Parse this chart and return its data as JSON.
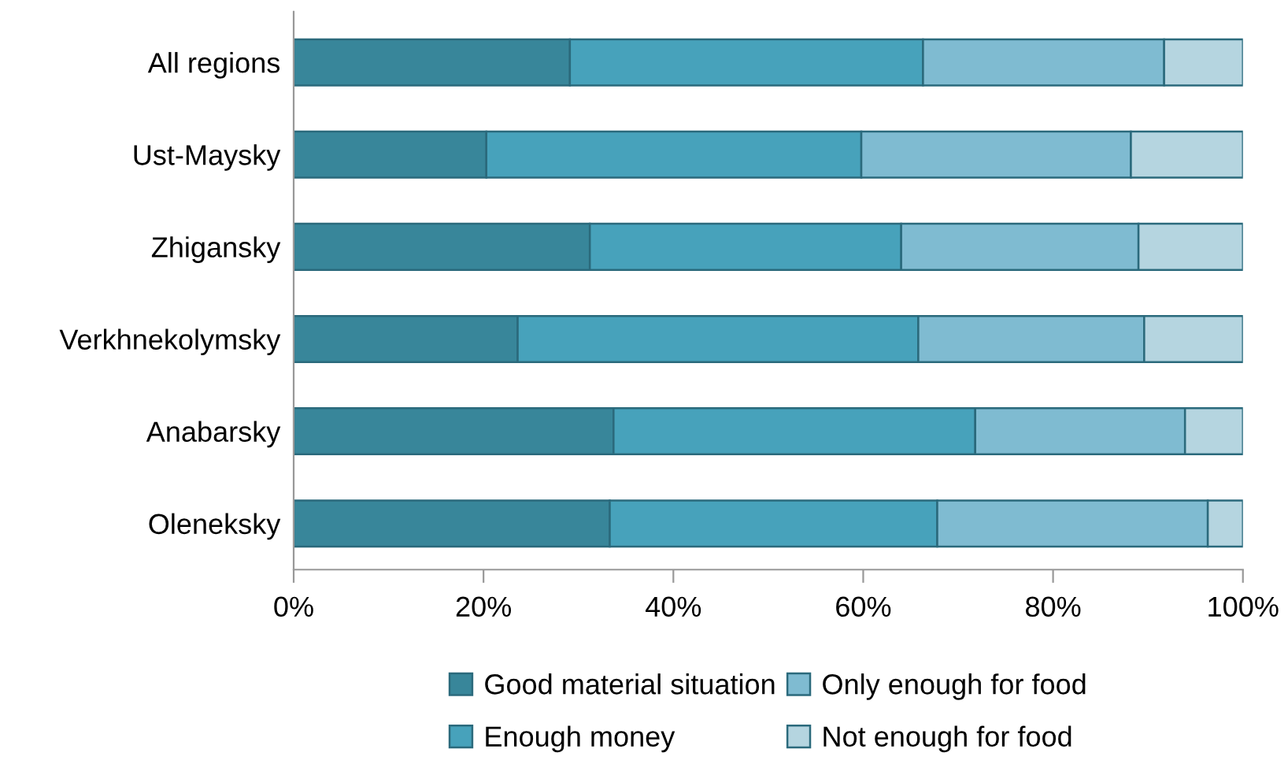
{
  "chart_data": {
    "type": "bar",
    "orientation": "horizontal",
    "stacked": true,
    "categories": [
      "All regions",
      "Ust-Maysky",
      "Zhigansky",
      "Verkhnekolymsky",
      "Anabarsky",
      "Oleneksky"
    ],
    "series": [
      {
        "name": "Good material situation",
        "color": "#38869a",
        "values": [
          29.1,
          20.3,
          31.2,
          23.6,
          33.7,
          33.3
        ]
      },
      {
        "name": "Enough money",
        "color": "#47a2bb",
        "values": [
          37.2,
          39.5,
          32.8,
          42.2,
          38.1,
          34.5
        ]
      },
      {
        "name": "Only enough for food",
        "color": "#7fbbd1",
        "values": [
          25.4,
          28.4,
          25.0,
          23.8,
          22.1,
          28.5
        ]
      },
      {
        "name": "Not enough for food",
        "color": "#b5d5e0",
        "values": [
          8.3,
          11.8,
          11.0,
          10.4,
          6.1,
          3.7
        ]
      }
    ],
    "xlim": [
      0,
      100
    ],
    "xticks": [
      {
        "value": 0,
        "label": "0%"
      },
      {
        "value": 20,
        "label": "20%"
      },
      {
        "value": 40,
        "label": "40%"
      },
      {
        "value": 60,
        "label": "60%"
      },
      {
        "value": 80,
        "label": "80%"
      },
      {
        "value": 100,
        "label": "100%"
      }
    ],
    "grid": false,
    "legend": "bottom"
  }
}
